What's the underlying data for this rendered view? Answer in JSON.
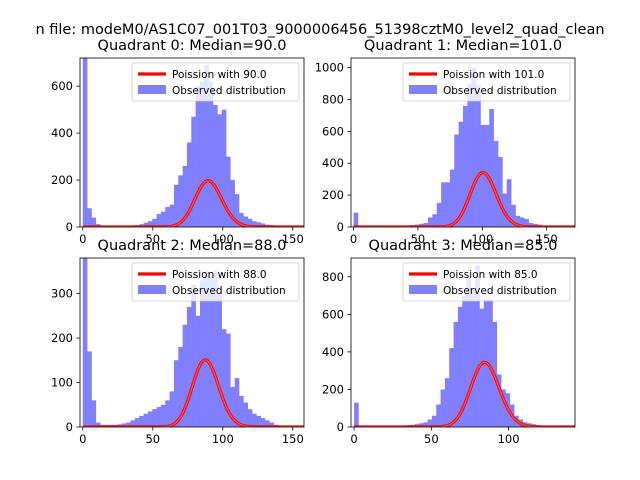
{
  "figure": {
    "suptitle": "n file: modeM0/AS1C07_001T03_9000006456_51398cztM0_level2_quad_clean"
  },
  "chart_data": [
    {
      "type": "bar",
      "title": "Quadrant 0: Median=90.0",
      "xlim": [
        -2,
        158
      ],
      "ylim": [
        0,
        720
      ],
      "xticks": [
        0,
        50,
        100,
        150
      ],
      "yticks": [
        0,
        200,
        400,
        600
      ],
      "bin_width": 3.1,
      "hist_values": [
        720,
        80,
        40,
        12,
        6,
        3,
        2,
        2,
        2,
        3,
        4,
        5,
        8,
        12,
        18,
        25,
        35,
        55,
        65,
        85,
        95,
        180,
        220,
        260,
        360,
        470,
        600,
        620,
        690,
        620,
        520,
        480,
        500,
        300,
        200,
        140,
        60,
        45,
        35,
        25,
        20,
        15,
        10,
        8,
        5,
        3,
        2,
        1,
        1,
        1
      ],
      "poisson_mean": 90.0,
      "poisson_scale": 4700,
      "poisson_color": "#ff0000",
      "hist_color": "#8080ff",
      "legend": [
        "Poission with 90.0",
        "Observed distribution"
      ]
    },
    {
      "type": "bar",
      "title": "Quadrant 1: Median=101.0",
      "xlim": [
        -2,
        172
      ],
      "ylim": [
        0,
        1060
      ],
      "xticks": [
        0,
        50,
        100,
        150
      ],
      "yticks": [
        0,
        200,
        400,
        600,
        800,
        1000
      ],
      "bin_width": 3.4,
      "hist_values": [
        90,
        5,
        2,
        2,
        2,
        2,
        2,
        2,
        2,
        3,
        5,
        8,
        10,
        12,
        15,
        20,
        25,
        60,
        80,
        150,
        280,
        280,
        360,
        580,
        660,
        760,
        900,
        1000,
        890,
        640,
        640,
        740,
        540,
        440,
        210,
        300,
        140,
        70,
        60,
        50,
        25,
        20,
        15,
        10,
        6,
        3,
        2,
        1,
        1,
        1
      ],
      "poisson_mean": 101.0,
      "poisson_scale": 8600,
      "poisson_color": "#ff0000",
      "hist_color": "#8080ff",
      "legend": [
        "Poission with 101.0",
        "Observed distribution"
      ]
    },
    {
      "type": "bar",
      "title": "Quadrant 2: Median=88.0",
      "xlim": [
        -2,
        158
      ],
      "ylim": [
        0,
        380
      ],
      "xticks": [
        0,
        50,
        100,
        150
      ],
      "yticks": [
        0,
        100,
        200,
        300
      ],
      "bin_width": 3.1,
      "hist_values": [
        380,
        170,
        60,
        10,
        5,
        5,
        5,
        5,
        6,
        8,
        10,
        15,
        20,
        25,
        30,
        35,
        40,
        45,
        50,
        60,
        80,
        150,
        180,
        230,
        270,
        320,
        250,
        330,
        350,
        340,
        350,
        300,
        220,
        210,
        90,
        110,
        70,
        55,
        40,
        30,
        25,
        20,
        15,
        10,
        5,
        3,
        2,
        1,
        1,
        1
      ],
      "poisson_mean": 88.0,
      "poisson_scale": 3550,
      "poisson_color": "#ff0000",
      "hist_color": "#8080ff",
      "legend": [
        "Poission with 88.0",
        "Observed distribution"
      ]
    },
    {
      "type": "bar",
      "title": "Quadrant 3: Median=85.0",
      "xlim": [
        -2,
        143
      ],
      "ylim": [
        0,
        900
      ],
      "xticks": [
        0,
        50,
        100
      ],
      "yticks": [
        0,
        200,
        400,
        600,
        800
      ],
      "bin_width": 2.8,
      "hist_values": [
        130,
        5,
        2,
        2,
        2,
        2,
        2,
        2,
        2,
        3,
        5,
        8,
        10,
        12,
        15,
        20,
        25,
        40,
        60,
        120,
        200,
        260,
        420,
        560,
        640,
        700,
        800,
        730,
        860,
        630,
        680,
        680,
        560,
        280,
        200,
        180,
        120,
        60,
        40,
        25,
        20,
        15,
        10,
        6,
        3,
        2,
        1,
        1,
        1,
        1
      ],
      "poisson_mean": 85.0,
      "poisson_scale": 7950,
      "poisson_color": "#ff0000",
      "hist_color": "#8080ff",
      "legend": [
        "Poission with 85.0",
        "Observed distribution"
      ]
    }
  ]
}
